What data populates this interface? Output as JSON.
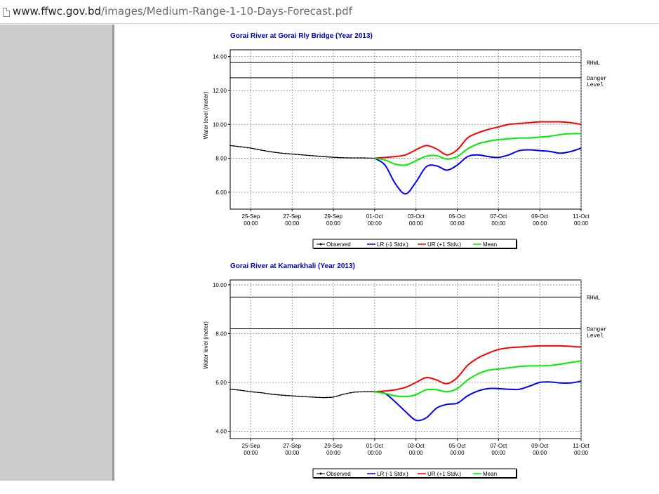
{
  "browser": {
    "url_host": "www.ffwc.gov.bd",
    "url_path": "/images/Medium-Range-1-10-Days-Forecast.pdf"
  },
  "colors": {
    "observed": "#000000",
    "lr": "#0000ff",
    "ur": "#ff0000",
    "mean": "#00ee00",
    "title": "#0000cc",
    "sidebar": "#cdcdcd"
  },
  "chart_data": [
    {
      "type": "line",
      "title": "Gorai River at Gorai Rly Bridge  (Year 2013)",
      "ylabel": "Water level (meter)",
      "xlabel": "",
      "ylim": [
        5.0,
        14.4
      ],
      "xlim": [
        -1.0,
        16.0
      ],
      "grid": true,
      "x_tick_labels": [
        [
          "25-Sep",
          "00:00"
        ],
        [
          "27-Sep",
          "00:00"
        ],
        [
          "29-Sep",
          "00:00"
        ],
        [
          "01-Oct",
          "00:00"
        ],
        [
          "03-Oct",
          "00:00"
        ],
        [
          "05-Oct",
          "00:00"
        ],
        [
          "07-Oct",
          "00:00"
        ],
        [
          "09-Oct",
          "00:00"
        ],
        [
          "11-Oct",
          "00:00"
        ]
      ],
      "x_tick_values": [
        0,
        2,
        4,
        6,
        8,
        10,
        12,
        14,
        16
      ],
      "y_ticks": [
        6.0,
        8.0,
        10.0,
        12.0,
        14.0
      ],
      "y_tick_labels": [
        "6.00",
        "8.00",
        "10.00",
        "12.00",
        "14.00"
      ],
      "reference_lines": [
        {
          "name": "RHWL",
          "value": 13.65
        },
        {
          "name": "Danger Level",
          "value": 12.75
        }
      ],
      "legend_position": "bottom-center",
      "legend": [
        "Observed",
        "LR (-1 Stdv.)",
        "UR (+1 Stdv.)",
        "Mean"
      ],
      "series": [
        {
          "name": "Observed",
          "color": "#000000",
          "x": [
            -1.0,
            -0.5,
            0,
            0.5,
            1,
            1.5,
            2,
            2.5,
            3,
            3.5,
            4,
            4.5,
            5,
            5.5,
            6
          ],
          "y": [
            8.75,
            8.68,
            8.6,
            8.48,
            8.38,
            8.3,
            8.25,
            8.2,
            8.15,
            8.1,
            8.06,
            8.03,
            8.02,
            8.02,
            8.0
          ]
        },
        {
          "name": "LR (-1 Stdv.)",
          "color": "#0000ff",
          "x": [
            6,
            6.5,
            7,
            7.5,
            8,
            8.5,
            9,
            9.5,
            10,
            10.5,
            11,
            11.5,
            12,
            12.5,
            13,
            13.5,
            14,
            14.5,
            15,
            15.5,
            16
          ],
          "y": [
            8.0,
            7.6,
            6.5,
            5.9,
            6.6,
            7.5,
            7.55,
            7.3,
            7.6,
            8.1,
            8.2,
            8.1,
            8.05,
            8.2,
            8.45,
            8.5,
            8.45,
            8.4,
            8.3,
            8.4,
            8.6
          ]
        },
        {
          "name": "UR (+1 Stdv.)",
          "color": "#ff0000",
          "x": [
            6,
            6.5,
            7,
            7.5,
            8,
            8.5,
            9,
            9.5,
            10,
            10.5,
            11,
            11.5,
            12,
            12.5,
            13,
            13.5,
            14,
            14.5,
            15,
            15.5,
            16
          ],
          "y": [
            8.0,
            8.05,
            8.1,
            8.2,
            8.5,
            8.75,
            8.55,
            8.2,
            8.5,
            9.2,
            9.5,
            9.7,
            9.85,
            10.0,
            10.05,
            10.1,
            10.15,
            10.15,
            10.15,
            10.1,
            10.0
          ]
        },
        {
          "name": "Mean",
          "color": "#00ee00",
          "x": [
            6,
            6.5,
            7,
            7.5,
            8,
            8.5,
            9,
            9.5,
            10,
            10.5,
            11,
            11.5,
            12,
            12.5,
            13,
            13.5,
            14,
            14.5,
            15,
            15.5,
            16
          ],
          "y": [
            8.0,
            7.9,
            7.65,
            7.6,
            7.85,
            8.12,
            8.15,
            7.95,
            8.1,
            8.55,
            8.85,
            9.0,
            9.1,
            9.15,
            9.2,
            9.2,
            9.25,
            9.3,
            9.4,
            9.45,
            9.45
          ]
        }
      ]
    },
    {
      "type": "line",
      "title": "Gorai River at Kamarkhali  (Year 2013)",
      "ylabel": "Water level (meter)",
      "xlabel": "",
      "ylim": [
        3.7,
        10.2
      ],
      "xlim": [
        -1.0,
        16.0
      ],
      "grid": true,
      "x_tick_labels": [
        [
          "25-Sep",
          "00:00"
        ],
        [
          "27-Sep",
          "00:00"
        ],
        [
          "29-Sep",
          "00:00"
        ],
        [
          "01-Oct",
          "00:00"
        ],
        [
          "03-Oct",
          "00:00"
        ],
        [
          "05-Oct",
          "00:00"
        ],
        [
          "07-Oct",
          "00:00"
        ],
        [
          "09-Oct",
          "00:00"
        ],
        [
          "11-Oct",
          "00:00"
        ]
      ],
      "x_tick_values": [
        0,
        2,
        4,
        6,
        8,
        10,
        12,
        14,
        16
      ],
      "y_ticks": [
        4.0,
        6.0,
        8.0,
        10.0
      ],
      "y_tick_labels": [
        "4.00",
        "6.00",
        "8.00",
        "10.00"
      ],
      "reference_lines": [
        {
          "name": "RHWL",
          "value": 9.5
        },
        {
          "name": "Danger Level",
          "value": 8.2
        }
      ],
      "legend_position": "bottom-center",
      "legend": [
        "Observed",
        "LR (-1 Stdv.)",
        "UR (+1 Stdv.)",
        "Mean"
      ],
      "series": [
        {
          "name": "Observed",
          "color": "#000000",
          "x": [
            -1.0,
            -0.5,
            0,
            0.5,
            1,
            1.5,
            2,
            2.5,
            3,
            3.5,
            4,
            4.5,
            5,
            5.5,
            6
          ],
          "y": [
            5.72,
            5.68,
            5.62,
            5.58,
            5.52,
            5.48,
            5.45,
            5.42,
            5.4,
            5.38,
            5.4,
            5.52,
            5.6,
            5.62,
            5.62
          ]
        },
        {
          "name": "LR (-1 Stdv.)",
          "color": "#0000ff",
          "x": [
            6,
            6.5,
            7,
            7.5,
            8,
            8.5,
            9,
            9.5,
            10,
            10.5,
            11,
            11.5,
            12,
            12.5,
            13,
            13.5,
            14,
            14.5,
            15,
            15.5,
            16
          ],
          "y": [
            5.62,
            5.55,
            5.2,
            4.8,
            4.45,
            4.55,
            4.95,
            5.1,
            5.15,
            5.45,
            5.65,
            5.75,
            5.75,
            5.72,
            5.72,
            5.85,
            6.0,
            6.02,
            5.98,
            5.98,
            6.05
          ]
        },
        {
          "name": "UR (+1 Stdv.)",
          "color": "#ff0000",
          "x": [
            6,
            6.5,
            7,
            7.5,
            8,
            8.5,
            9,
            9.5,
            10,
            10.5,
            11,
            11.5,
            12,
            12.5,
            13,
            13.5,
            14,
            14.5,
            15,
            15.5,
            16
          ],
          "y": [
            5.62,
            5.65,
            5.7,
            5.8,
            6.0,
            6.2,
            6.1,
            5.95,
            6.2,
            6.7,
            7.0,
            7.2,
            7.35,
            7.42,
            7.45,
            7.48,
            7.5,
            7.5,
            7.5,
            7.48,
            7.45
          ]
        },
        {
          "name": "Mean",
          "color": "#00ee00",
          "x": [
            6,
            6.5,
            7,
            7.5,
            8,
            8.5,
            9,
            9.5,
            10,
            10.5,
            11,
            11.5,
            12,
            12.5,
            13,
            13.5,
            14,
            14.5,
            15,
            15.5,
            16
          ],
          "y": [
            5.62,
            5.55,
            5.45,
            5.42,
            5.5,
            5.7,
            5.7,
            5.62,
            5.75,
            6.1,
            6.35,
            6.5,
            6.55,
            6.6,
            6.65,
            6.68,
            6.68,
            6.7,
            6.75,
            6.82,
            6.88
          ]
        }
      ]
    }
  ]
}
